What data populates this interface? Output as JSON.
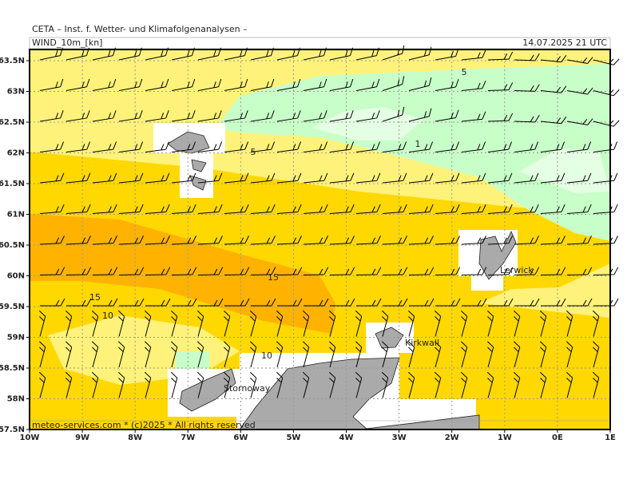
{
  "header": {
    "title": "CETA – Inst. f. Wetter- und Klimafolgenanalysen –",
    "field": "WIND_10m_[kn]",
    "time": "14.07.2025 21 UTC"
  },
  "axes": {
    "lat": [
      "63.5N",
      "63N",
      "62.5N",
      "62N",
      "61.5N",
      "61N",
      "60.5N",
      "60N",
      "59.5N",
      "59N",
      "58.5N",
      "58N",
      "57.5N"
    ],
    "lon": [
      "10W",
      "9W",
      "8W",
      "7W",
      "6W",
      "5W",
      "4W",
      "3W",
      "2W",
      "1W",
      "0E",
      "1E"
    ]
  },
  "contour_labels": [
    "5",
    "5",
    "1",
    "15",
    "15",
    "10",
    "10"
  ],
  "places": [
    "Lerwick",
    "Kirkwall",
    "Stornoway"
  ],
  "footer": "meteo-services.com * (c)2025 * All rights reserved"
}
